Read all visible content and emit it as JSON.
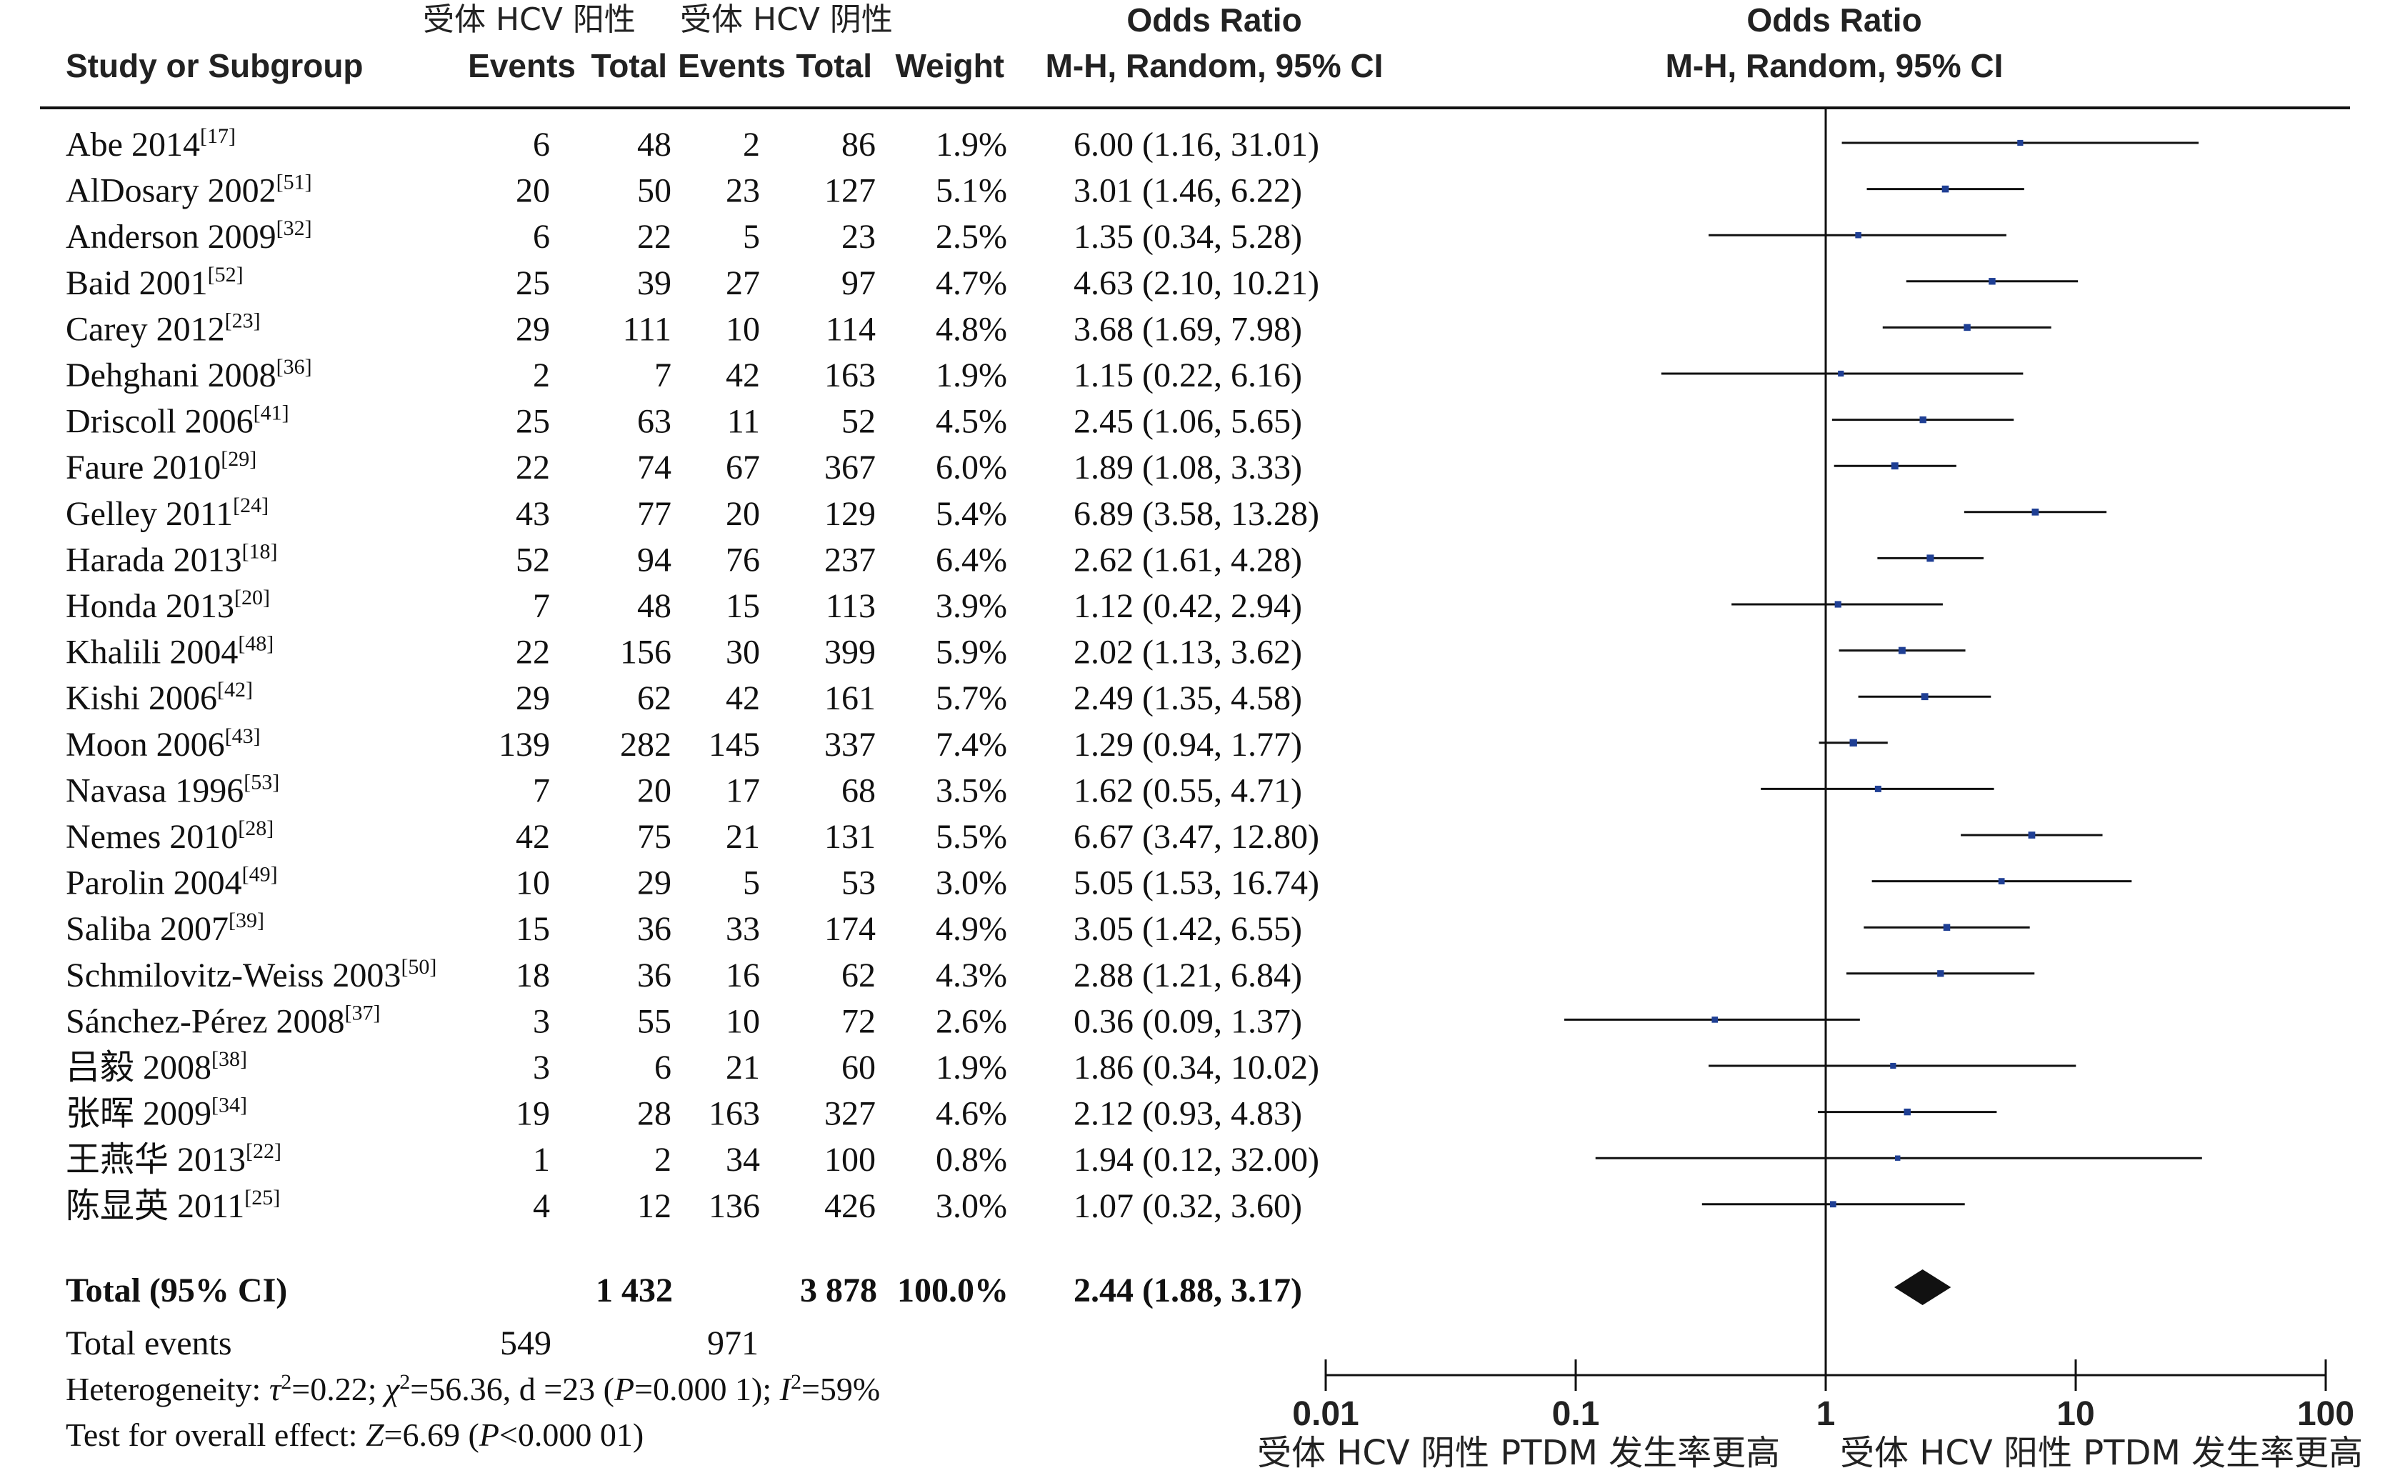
{
  "header": {
    "group1": "受体 HCV 阳性",
    "group2": "受体 HCV 阴性",
    "study_col": "Study or Subgroup",
    "events": "Events",
    "total": "Total",
    "weight": "Weight",
    "or_title": "Odds Ratio",
    "or_method": "M-H, Random, 95% CI",
    "plot_title": "Odds Ratio",
    "plot_method": "M-H, Random, 95% CI"
  },
  "studies": [
    {
      "name": "Abe 2014",
      "ref": "[17]",
      "e1": "6",
      "t1": "48",
      "e2": "2",
      "t2": "86",
      "weight": "1.9%",
      "ci_text": "6.00 (1.16, 31.01)"
    },
    {
      "name": "AlDosary 2002",
      "ref": "[51]",
      "e1": "20",
      "t1": "50",
      "e2": "23",
      "t2": "127",
      "weight": "5.1%",
      "ci_text": "3.01 (1.46, 6.22)"
    },
    {
      "name": "Anderson 2009",
      "ref": "[32]",
      "e1": "6",
      "t1": "22",
      "e2": "5",
      "t2": "23",
      "weight": "2.5%",
      "ci_text": "1.35 (0.34, 5.28)"
    },
    {
      "name": "Baid 2001",
      "ref": "[52]",
      "e1": "25",
      "t1": "39",
      "e2": "27",
      "t2": "97",
      "weight": "4.7%",
      "ci_text": "4.63 (2.10, 10.21)"
    },
    {
      "name": "Carey 2012",
      "ref": "[23]",
      "e1": "29",
      "t1": "111",
      "e2": "10",
      "t2": "114",
      "weight": "4.8%",
      "ci_text": "3.68 (1.69, 7.98)"
    },
    {
      "name": "Dehghani 2008",
      "ref": "[36]",
      "e1": "2",
      "t1": "7",
      "e2": "42",
      "t2": "163",
      "weight": "1.9%",
      "ci_text": "1.15 (0.22, 6.16)"
    },
    {
      "name": "Driscoll 2006",
      "ref": "[41]",
      "e1": "25",
      "t1": "63",
      "e2": "11",
      "t2": "52",
      "weight": "4.5%",
      "ci_text": "2.45 (1.06, 5.65)"
    },
    {
      "name": "Faure 2010",
      "ref": "[29]",
      "e1": "22",
      "t1": "74",
      "e2": "67",
      "t2": "367",
      "weight": "6.0%",
      "ci_text": "1.89 (1.08, 3.33)"
    },
    {
      "name": "Gelley 2011",
      "ref": "[24]",
      "e1": "43",
      "t1": "77",
      "e2": "20",
      "t2": "129",
      "weight": "5.4%",
      "ci_text": "6.89 (3.58, 13.28)"
    },
    {
      "name": "Harada 2013",
      "ref": "[18]",
      "e1": "52",
      "t1": "94",
      "e2": "76",
      "t2": "237",
      "weight": "6.4%",
      "ci_text": "2.62 (1.61, 4.28)"
    },
    {
      "name": "Honda 2013",
      "ref": "[20]",
      "e1": "7",
      "t1": "48",
      "e2": "15",
      "t2": "113",
      "weight": "3.9%",
      "ci_text": "1.12 (0.42, 2.94)"
    },
    {
      "name": "Khalili 2004",
      "ref": "[48]",
      "e1": "22",
      "t1": "156",
      "e2": "30",
      "t2": "399",
      "weight": "5.9%",
      "ci_text": "2.02 (1.13, 3.62)"
    },
    {
      "name": "Kishi 2006",
      "ref": "[42]",
      "e1": "29",
      "t1": "62",
      "e2": "42",
      "t2": "161",
      "weight": "5.7%",
      "ci_text": "2.49 (1.35, 4.58)"
    },
    {
      "name": "Moon 2006",
      "ref": "[43]",
      "e1": "139",
      "t1": "282",
      "e2": "145",
      "t2": "337",
      "weight": "7.4%",
      "ci_text": "1.29 (0.94, 1.77)"
    },
    {
      "name": "Navasa 1996",
      "ref": "[53]",
      "e1": "7",
      "t1": "20",
      "e2": "17",
      "t2": "68",
      "weight": "3.5%",
      "ci_text": "1.62 (0.55, 4.71)"
    },
    {
      "name": "Nemes 2010",
      "ref": "[28]",
      "e1": "42",
      "t1": "75",
      "e2": "21",
      "t2": "131",
      "weight": "5.5%",
      "ci_text": "6.67 (3.47, 12.80)"
    },
    {
      "name": "Parolin 2004",
      "ref": "[49]",
      "e1": "10",
      "t1": "29",
      "e2": "5",
      "t2": "53",
      "weight": "3.0%",
      "ci_text": "5.05 (1.53, 16.74)"
    },
    {
      "name": "Saliba 2007",
      "ref": "[39]",
      "e1": "15",
      "t1": "36",
      "e2": "33",
      "t2": "174",
      "weight": "4.9%",
      "ci_text": "3.05 (1.42, 6.55)"
    },
    {
      "name": "Schmilovitz-Weiss 2003",
      "ref": "[50]",
      "e1": "18",
      "t1": "36",
      "e2": "16",
      "t2": "62",
      "weight": "4.3%",
      "ci_text": "2.88 (1.21, 6.84)"
    },
    {
      "name": "Sánchez-Pérez 2008",
      "ref": "[37]",
      "e1": "3",
      "t1": "55",
      "e2": "10",
      "t2": "72",
      "weight": "2.6%",
      "ci_text": "0.36 (0.09, 1.37)"
    },
    {
      "name": "吕毅 2008",
      "ref": "[38]",
      "e1": "3",
      "t1": "6",
      "e2": "21",
      "t2": "60",
      "weight": "1.9%",
      "ci_text": "1.86 (0.34, 10.02)"
    },
    {
      "name": "张晖 2009",
      "ref": "[34]",
      "e1": "19",
      "t1": "28",
      "e2": "163",
      "t2": "327",
      "weight": "4.6%",
      "ci_text": "2.12 (0.93, 4.83)"
    },
    {
      "name": "王燕华 2013",
      "ref": "[22]",
      "e1": "1",
      "t1": "2",
      "e2": "34",
      "t2": "100",
      "weight": "0.8%",
      "ci_text": "1.94 (0.12, 32.00)"
    },
    {
      "name": "陈显英 2011",
      "ref": "[25]",
      "e1": "4",
      "t1": "12",
      "e2": "136",
      "t2": "426",
      "weight": "3.0%",
      "ci_text": "1.07 (0.32, 3.60)"
    }
  ],
  "total": {
    "label": "Total (95% CI)",
    "t1": "1 432",
    "t2": "3 878",
    "weight": "100.0%",
    "ci_text": "2.44 (1.88, 3.17)"
  },
  "total_events": {
    "label": "Total events",
    "e1": "549",
    "e2": "971"
  },
  "heterogeneity": {
    "prefix": "Heterogeneity: ",
    "tau": "τ",
    "tau_rest": "=0.22; ",
    "chi": "χ",
    "chi_rest": "=56.36, d =23 (",
    "p": "P",
    "p_rest": "=0.000 1); ",
    "i": "I",
    "i_rest": "=59%",
    "sup": "2"
  },
  "overall_effect": {
    "prefix": "Test for overall effect: ",
    "z": "Z",
    "z_rest": "=6.69 (",
    "p": "P",
    "p_rest": "<0.000 01)"
  },
  "axis": {
    "ticks": [
      "0.01",
      "0.1",
      "1",
      "10",
      "100"
    ],
    "favours_left": "受体 HCV 阴性 PTDM 发生率更高",
    "favours_right": "受体 HCV 阳性 PTDM 发生率更高"
  },
  "colors": {
    "marker": "#1f3f94",
    "line": "#111111",
    "diamond": "#111111"
  },
  "chart_data": {
    "type": "forest",
    "scale": "log",
    "xlim": [
      0.01,
      100
    ],
    "null_value": 1,
    "points": [
      {
        "or": 6.0,
        "lo": 1.16,
        "hi": 31.01
      },
      {
        "or": 3.01,
        "lo": 1.46,
        "hi": 6.22
      },
      {
        "or": 1.35,
        "lo": 0.34,
        "hi": 5.28
      },
      {
        "or": 4.63,
        "lo": 2.1,
        "hi": 10.21
      },
      {
        "or": 3.68,
        "lo": 1.69,
        "hi": 7.98
      },
      {
        "or": 1.15,
        "lo": 0.22,
        "hi": 6.16
      },
      {
        "or": 2.45,
        "lo": 1.06,
        "hi": 5.65
      },
      {
        "or": 1.89,
        "lo": 1.08,
        "hi": 3.33
      },
      {
        "or": 6.89,
        "lo": 3.58,
        "hi": 13.28
      },
      {
        "or": 2.62,
        "lo": 1.61,
        "hi": 4.28
      },
      {
        "or": 1.12,
        "lo": 0.42,
        "hi": 2.94
      },
      {
        "or": 2.02,
        "lo": 1.13,
        "hi": 3.62
      },
      {
        "or": 2.49,
        "lo": 1.35,
        "hi": 4.58
      },
      {
        "or": 1.29,
        "lo": 0.94,
        "hi": 1.77
      },
      {
        "or": 1.62,
        "lo": 0.55,
        "hi": 4.71
      },
      {
        "or": 6.67,
        "lo": 3.47,
        "hi": 12.8
      },
      {
        "or": 5.05,
        "lo": 1.53,
        "hi": 16.74
      },
      {
        "or": 3.05,
        "lo": 1.42,
        "hi": 6.55
      },
      {
        "or": 2.88,
        "lo": 1.21,
        "hi": 6.84
      },
      {
        "or": 0.36,
        "lo": 0.09,
        "hi": 1.37
      },
      {
        "or": 1.86,
        "lo": 0.34,
        "hi": 10.02
      },
      {
        "or": 2.12,
        "lo": 0.93,
        "hi": 4.83
      },
      {
        "or": 1.94,
        "lo": 0.12,
        "hi": 32.0
      },
      {
        "or": 1.07,
        "lo": 0.32,
        "hi": 3.6
      }
    ],
    "pooled": {
      "or": 2.44,
      "lo": 1.88,
      "hi": 3.17
    }
  }
}
